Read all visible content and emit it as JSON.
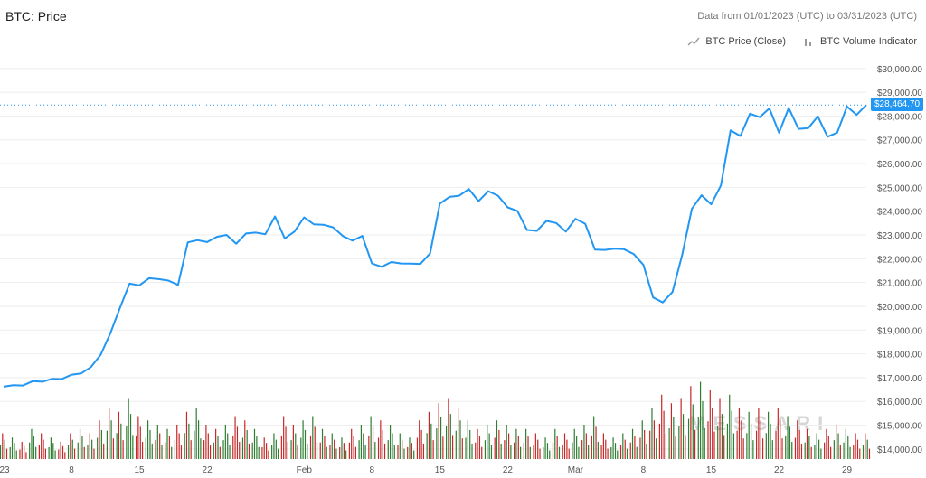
{
  "header": {
    "title": "BTC: Price",
    "subtitle": "Data from 01/01/2023 (UTC) to 03/31/2023 (UTC)"
  },
  "legend": {
    "price_label": "BTC Price (Close)",
    "volume_label": "BTC Volume Indicator",
    "price_icon": "line-chart-icon",
    "volume_icon": "bar-chart-icon"
  },
  "watermark": "MESSARI",
  "current_price_label": "$28,464.70",
  "colors": {
    "line": "#2196f3",
    "up": "#2e7d32",
    "down": "#c62828",
    "grid": "#eeeeee"
  },
  "chart_data": {
    "type": "line",
    "title": "BTC: Price",
    "series": [
      {
        "name": "BTC Price (Close)",
        "x": [
          "2023-01-01",
          "2023-01-02",
          "2023-01-03",
          "2023-01-04",
          "2023-01-05",
          "2023-01-06",
          "2023-01-07",
          "2023-01-08",
          "2023-01-09",
          "2023-01-10",
          "2023-01-11",
          "2023-01-12",
          "2023-01-13",
          "2023-01-14",
          "2023-01-15",
          "2023-01-16",
          "2023-01-17",
          "2023-01-18",
          "2023-01-19",
          "2023-01-20",
          "2023-01-21",
          "2023-01-22",
          "2023-01-23",
          "2023-01-24",
          "2023-01-25",
          "2023-01-26",
          "2023-01-27",
          "2023-01-28",
          "2023-01-29",
          "2023-01-30",
          "2023-01-31",
          "2023-02-01",
          "2023-02-02",
          "2023-02-03",
          "2023-02-04",
          "2023-02-05",
          "2023-02-06",
          "2023-02-07",
          "2023-02-08",
          "2023-02-09",
          "2023-02-10",
          "2023-02-11",
          "2023-02-12",
          "2023-02-13",
          "2023-02-14",
          "2023-02-15",
          "2023-02-16",
          "2023-02-17",
          "2023-02-18",
          "2023-02-19",
          "2023-02-20",
          "2023-02-21",
          "2023-02-22",
          "2023-02-23",
          "2023-02-24",
          "2023-02-25",
          "2023-02-26",
          "2023-02-27",
          "2023-02-28",
          "2023-03-01",
          "2023-03-02",
          "2023-03-03",
          "2023-03-04",
          "2023-03-05",
          "2023-03-06",
          "2023-03-07",
          "2023-03-08",
          "2023-03-09",
          "2023-03-10",
          "2023-03-11",
          "2023-03-12",
          "2023-03-13",
          "2023-03-14",
          "2023-03-15",
          "2023-03-16",
          "2023-03-17",
          "2023-03-18",
          "2023-03-19",
          "2023-03-20",
          "2023-03-21",
          "2023-03-22",
          "2023-03-23",
          "2023-03-24",
          "2023-03-25",
          "2023-03-26",
          "2023-03-27",
          "2023-03-28",
          "2023-03-29",
          "2023-03-30",
          "2023-03-31"
        ],
        "values": [
          16620,
          16680,
          16670,
          16850,
          16830,
          16950,
          16940,
          17120,
          17180,
          17440,
          17950,
          18850,
          19930,
          20950,
          20880,
          21180,
          21140,
          21080,
          20900,
          22690,
          22780,
          22700,
          22920,
          23000,
          22630,
          23060,
          23100,
          23030,
          23780,
          22850,
          23140,
          23740,
          23450,
          23430,
          23320,
          22950,
          22760,
          22960,
          21800,
          21660,
          21860,
          21800,
          21790,
          21780,
          22220,
          24320,
          24600,
          24650,
          24930,
          24420,
          24840,
          24650,
          24160,
          24010,
          23210,
          23170,
          23590,
          23500,
          23140,
          23680,
          23470,
          22380,
          22370,
          22420,
          22400,
          22200,
          21740,
          20370,
          20160,
          20600,
          22150,
          24100,
          24670,
          24290,
          25080,
          27400,
          27160,
          28100,
          27950,
          28320,
          27300,
          28340,
          27460,
          27490,
          27980,
          27130,
          27300,
          28400,
          28050,
          28464.7
        ]
      }
    ],
    "volume_series": {
      "name": "BTC Volume Indicator",
      "relative_values": [
        0.3,
        0.25,
        0.2,
        0.35,
        0.3,
        0.25,
        0.2,
        0.3,
        0.35,
        0.3,
        0.45,
        0.6,
        0.55,
        0.7,
        0.5,
        0.45,
        0.4,
        0.35,
        0.4,
        0.55,
        0.6,
        0.4,
        0.35,
        0.4,
        0.5,
        0.45,
        0.35,
        0.25,
        0.3,
        0.5,
        0.4,
        0.45,
        0.5,
        0.35,
        0.3,
        0.25,
        0.35,
        0.4,
        0.5,
        0.45,
        0.4,
        0.3,
        0.25,
        0.45,
        0.55,
        0.65,
        0.7,
        0.6,
        0.45,
        0.35,
        0.4,
        0.45,
        0.4,
        0.35,
        0.35,
        0.3,
        0.25,
        0.35,
        0.3,
        0.35,
        0.4,
        0.5,
        0.3,
        0.25,
        0.3,
        0.35,
        0.45,
        0.6,
        0.75,
        0.65,
        0.7,
        0.85,
        0.9,
        0.8,
        0.7,
        0.75,
        0.6,
        0.55,
        0.6,
        0.55,
        0.6,
        0.5,
        0.45,
        0.35,
        0.3,
        0.35,
        0.4,
        0.35,
        0.3,
        0.3
      ],
      "up": [
        true,
        true,
        false,
        true,
        false,
        true,
        false,
        true,
        true,
        true,
        true,
        true,
        true,
        true,
        false,
        true,
        false,
        false,
        false,
        true,
        true,
        false,
        true,
        true,
        false,
        true,
        true,
        false,
        true,
        false,
        true,
        true,
        false,
        false,
        false,
        false,
        false,
        true,
        false,
        false,
        true,
        false,
        false,
        false,
        true,
        true,
        true,
        true,
        true,
        false,
        true,
        false,
        false,
        false,
        false,
        false,
        true,
        false,
        false,
        true,
        false,
        false,
        false,
        true,
        false,
        false,
        false,
        false,
        false,
        true,
        true,
        true,
        true,
        false,
        true,
        true,
        false,
        true,
        false,
        true,
        false,
        true,
        false,
        true,
        true,
        false,
        true,
        true,
        false,
        true
      ]
    },
    "y_ticks": [
      "$30,000.00",
      "$29,000.00",
      "$28,000.00",
      "$27,000.00",
      "$26,000.00",
      "$25,000.00",
      "$24,000.00",
      "$23,000.00",
      "$22,000.00",
      "$21,000.00",
      "$20,000.00",
      "$19,000.00",
      "$18,000.00",
      "$17,000.00",
      "$16,000.00",
      "$15,000.00",
      "$14,000.00"
    ],
    "y_tick_values": [
      30000,
      29000,
      28000,
      27000,
      26000,
      25000,
      24000,
      23000,
      22000,
      21000,
      20000,
      19000,
      18000,
      17000,
      16000,
      15000,
      14000
    ],
    "x_ticks": [
      "23",
      "8",
      "15",
      "22",
      "Feb",
      "8",
      "15",
      "22",
      "Mar",
      "8",
      "15",
      "22",
      "29"
    ],
    "x_tick_dates": [
      "2023-01-01",
      "2023-01-08",
      "2023-01-15",
      "2023-01-22",
      "2023-02-01",
      "2023-02-08",
      "2023-02-15",
      "2023-02-22",
      "2023-03-01",
      "2023-03-08",
      "2023-03-15",
      "2023-03-22",
      "2023-03-29"
    ],
    "ylim": [
      13500,
      30600
    ],
    "grid": true,
    "legend_position": "top-right"
  }
}
